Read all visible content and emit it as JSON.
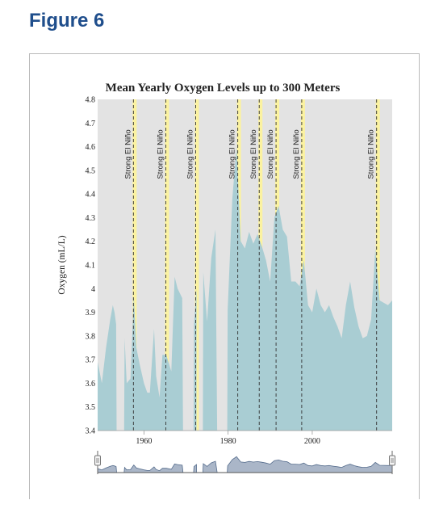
{
  "figure_label": "Figure 6",
  "chart_data": {
    "type": "area",
    "title": "Mean Yearly Oxygen Levels up to 300 Meters",
    "ylabel": "Oxygen (mL/L)",
    "xlabel": "",
    "xlim": [
      1949,
      2019
    ],
    "ylim": [
      3.4,
      4.8
    ],
    "yticks": [
      3.4,
      3.5,
      3.6,
      3.7,
      3.8,
      3.9,
      4,
      4.1,
      4.2,
      4.3,
      4.4,
      4.5,
      4.6,
      4.7,
      4.8
    ],
    "ytick_labels": [
      "3.4",
      "3.5",
      "3.6",
      "3.7",
      "3.8",
      "3.9",
      "4",
      "4.1",
      "4.2",
      "4.3",
      "4.4",
      "4.5",
      "4.6",
      "4.7",
      "4.8"
    ],
    "xticks": [
      1960,
      1980,
      2000
    ],
    "xtick_labels": [
      "1960",
      "1980",
      "2000"
    ],
    "grid": false,
    "background": "#e3e3e3",
    "area_color": "#a9cdd3",
    "segments": [
      [
        [
          1949,
          3.69
        ],
        [
          1950,
          3.6
        ],
        [
          1951,
          3.75
        ],
        [
          1952,
          3.87
        ],
        [
          1952.6,
          3.93
        ],
        [
          1953,
          3.9
        ],
        [
          1953.4,
          3.85
        ],
        [
          1953.5,
          3.4
        ]
      ],
      [
        [
          1955.3,
          3.4
        ],
        [
          1955.4,
          3.79
        ],
        [
          1955.9,
          3.6
        ],
        [
          1956.8,
          3.62
        ],
        [
          1957.6,
          3.97
        ],
        [
          1958.2,
          3.75
        ],
        [
          1959,
          3.68
        ],
        [
          1960,
          3.6
        ],
        [
          1960.8,
          3.56
        ],
        [
          1961.4,
          3.56
        ],
        [
          1962.4,
          3.83
        ],
        [
          1962.9,
          3.63
        ],
        [
          1963.7,
          3.54
        ],
        [
          1964.4,
          3.72
        ],
        [
          1965.3,
          3.72
        ],
        [
          1966.5,
          3.65
        ],
        [
          1967.3,
          4.05
        ],
        [
          1968,
          4
        ],
        [
          1969.1,
          3.96
        ],
        [
          1969.3,
          3.4
        ]
      ],
      [
        [
          1971.8,
          3.4
        ],
        [
          1971.9,
          3.85
        ],
        [
          1972.5,
          4
        ]
      ],
      [
        [
          1974,
          3.4
        ],
        [
          1974.1,
          4.07
        ],
        [
          1975,
          3.86
        ],
        [
          1976,
          4.13
        ],
        [
          1977,
          4.25
        ],
        [
          1977.4,
          3.4
        ]
      ],
      [
        [
          1979.8,
          3.4
        ],
        [
          1979.9,
          3.91
        ],
        [
          1981,
          4.38
        ],
        [
          1982,
          4.6
        ],
        [
          1983,
          4.2
        ],
        [
          1984,
          4.17
        ],
        [
          1985,
          4.24
        ],
        [
          1986,
          4.19
        ],
        [
          1987,
          4.23
        ],
        [
          1988,
          4.18
        ],
        [
          1989,
          4.12
        ],
        [
          1990,
          4.03
        ],
        [
          1991,
          4.3
        ],
        [
          1992,
          4.35
        ],
        [
          1993,
          4.25
        ],
        [
          1994,
          4.22
        ],
        [
          1995,
          4.03
        ],
        [
          1996,
          4.03
        ],
        [
          1997,
          4.01
        ],
        [
          1998,
          4.12
        ],
        [
          1999,
          3.93
        ],
        [
          2000,
          3.9
        ],
        [
          2001,
          4
        ],
        [
          2002,
          3.93
        ],
        [
          2003,
          3.9
        ],
        [
          2004,
          3.93
        ],
        [
          2005,
          3.88
        ],
        [
          2006,
          3.84
        ],
        [
          2007,
          3.79
        ],
        [
          2008,
          3.93
        ],
        [
          2009,
          4.03
        ],
        [
          2010,
          3.92
        ],
        [
          2011,
          3.84
        ],
        [
          2012,
          3.79
        ],
        [
          2013,
          3.8
        ],
        [
          2014,
          3.87
        ],
        [
          2015,
          4.17
        ],
        [
          2016,
          3.95
        ],
        [
          2017,
          3.94
        ],
        [
          2018,
          3.93
        ],
        [
          2019,
          3.95
        ]
      ]
    ],
    "annotations": [
      {
        "x": 1957.5,
        "label": "Strong El Niño"
      },
      {
        "x": 1965.2,
        "label": "Strong El Niño"
      },
      {
        "x": 1972.3,
        "label": "Strong El Niño"
      },
      {
        "x": 1982.3,
        "label": "Strong El Niño"
      },
      {
        "x": 1987.4,
        "label": "Strong El Niño"
      },
      {
        "x": 1991.4,
        "label": "Strong El Niño"
      },
      {
        "x": 1997.5,
        "label": "Strong El Niño"
      },
      {
        "x": 2015.3,
        "label": "Strong El Niño"
      }
    ],
    "annotation_band_color": "#fbf2a0",
    "navigator": {
      "type": "overview-area",
      "range": [
        1949,
        2019
      ],
      "fill": "#aab6c8",
      "stroke": "#556c8c"
    }
  }
}
